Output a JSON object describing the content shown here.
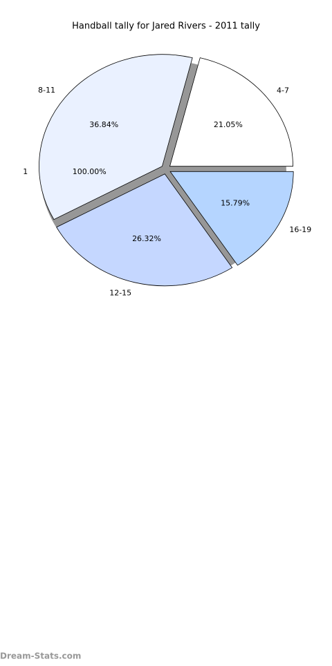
{
  "chart_data": [
    {
      "type": "pie",
      "title": "Handball tally for Jared Rivers - 2011 tally",
      "categories": [
        "4-7",
        "8-11",
        "12-15",
        "16-19"
      ],
      "values": [
        21.05,
        36.84,
        26.32,
        15.79
      ],
      "value_labels": [
        "21.05%",
        "36.84%",
        "26.32%",
        "15.79%"
      ],
      "colors": [
        "#ffffff",
        "#eaf1ff",
        "#c5d7ff",
        "#b5d5ff"
      ]
    },
    {
      "type": "pie",
      "categories": [
        "1"
      ],
      "values": [
        100
      ],
      "value_labels": [
        "100.00%"
      ],
      "colors": [
        "#8c8c8c"
      ]
    }
  ],
  "footer": "Dream-Stats.com"
}
